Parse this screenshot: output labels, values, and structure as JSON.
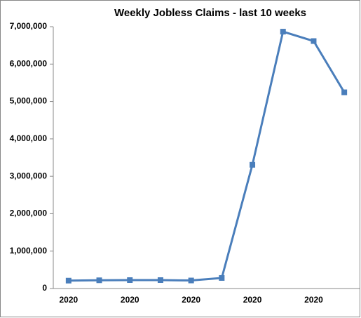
{
  "chart_data": {
    "type": "line",
    "title": "Weekly Jobless Claims - last 10 weeks",
    "categories": [
      "2020",
      null,
      "2020",
      null,
      "2020",
      null,
      "2020",
      null,
      "2020",
      null
    ],
    "series": [
      {
        "color": "#4a7ebb",
        "values": [
          211000,
          220000,
          225000,
          225000,
          215000,
          282000,
          3307000,
          6867000,
          6615000,
          5245000
        ]
      }
    ],
    "ylim": [
      0,
      7000000
    ],
    "yticks": [
      0,
      {
        "value": 1000000,
        "label": "1,000,000"
      },
      {
        "value": 2000000,
        "label": "2,000,000"
      },
      {
        "value": 3000000,
        "label": "3,000,000"
      },
      {
        "value": 4000000,
        "label": "4,000,000"
      },
      {
        "value": 5000000,
        "label": "5,000,000"
      },
      {
        "value": 6000000,
        "label": "6,000,000"
      },
      {
        "value": 7000000,
        "label": "7,000,000"
      }
    ],
    "grid": false
  }
}
